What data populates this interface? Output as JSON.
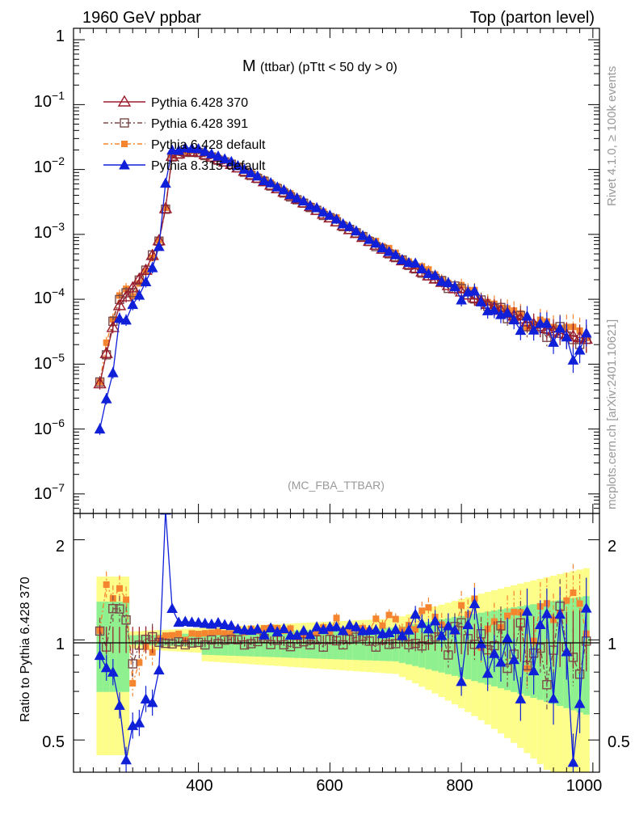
{
  "header": {
    "left": "1960 GeV ppbar",
    "right": "Top (parton level)"
  },
  "side": {
    "rivet": "Rivet 4.1.0, ≥ 100k events",
    "mcplots": "mcplots.cern.ch [arXiv:2401.10621]"
  },
  "chart_data": {
    "type": "line",
    "title_main": "M",
    "title_sub": "(ttbar) (pTtt < 50 dy > 0)",
    "watermark": "(MC_FBA_TTBAR)",
    "xlabel": "",
    "ylabel_ratio": "Ratio to Pythia 6.428 370",
    "xlim": [
      210,
      1010
    ],
    "ylim_main": [
      5e-08,
      1.5
    ],
    "ylim_ratio": [
      0.4,
      2.4
    ],
    "yscale_main": "log",
    "yscale_ratio": "log",
    "x_ticks": [
      "400",
      "600",
      "800",
      "1000"
    ],
    "main_y_ticks": [
      "1",
      "10^-1",
      "10^-2",
      "10^-3",
      "10^-4",
      "10^-5",
      "10^-6",
      "10^-7"
    ],
    "ratio_y_ticks": [
      "0.5",
      "1",
      "2"
    ],
    "legend_position": "top-left",
    "series": [
      {
        "name": "Pythia 6.428 370",
        "color": "#9a1b2b",
        "marker": "open-triangle",
        "dash": "solid"
      },
      {
        "name": "Pythia 6.428 391",
        "color": "#7a4a4a",
        "marker": "open-square",
        "dash": "dash-dot"
      },
      {
        "name": "Pythia 6.428 default",
        "color": "#f5852f",
        "marker": "filled-square",
        "dash": "dash-dot"
      },
      {
        "name": "Pythia 8.315 default",
        "color": "#1020d8",
        "marker": "filled-triangle",
        "dash": "solid"
      }
    ],
    "shape_points": {
      "x": [
        250,
        265,
        280,
        300,
        320,
        340,
        350,
        360,
        380,
        400,
        450,
        500,
        550,
        600,
        650,
        700,
        750,
        800,
        850,
        900,
        950,
        1000
      ],
      "y": [
        5e-06,
        2.5e-05,
        8e-05,
        0.00015,
        0.00028,
        0.0008,
        0.0025,
        0.016,
        0.019,
        0.0185,
        0.012,
        0.0065,
        0.0035,
        0.0018,
        0.0009,
        0.00045,
        0.00023,
        0.00013,
        7.5e-05,
        4.5e-05,
        3e-05,
        2.3e-05
      ]
    },
    "ratio_trend": {
      "pythia8_x": [
        270,
        280,
        290,
        300,
        310,
        320,
        330,
        340,
        345,
        350,
        355,
        360,
        370,
        400,
        450,
        500,
        550,
        600,
        650,
        700
      ],
      "pythia8_y": [
        0.85,
        0.62,
        0.45,
        0.5,
        0.55,
        0.62,
        0.68,
        0.8,
        1.3,
        2.45,
        1.6,
        1.25,
        1.13,
        1.13,
        1.1,
        1.06,
        1.05,
        1.08,
        1.1,
        1.05
      ]
    }
  }
}
